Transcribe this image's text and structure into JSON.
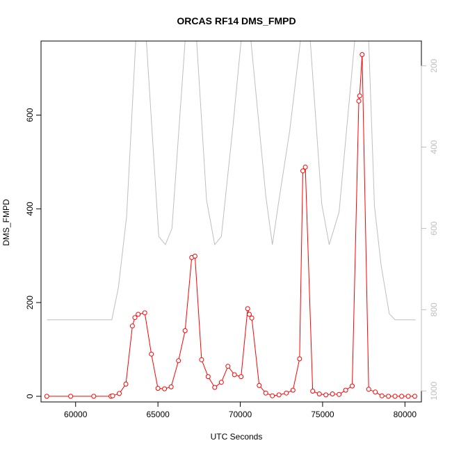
{
  "chart_data": {
    "type": "line",
    "title": "ORCAS RF14 DMS_FMPD",
    "xlabel": "UTC Seconds",
    "ylabel": "DMS_FMPD",
    "xlim": [
      57900,
      81000
    ],
    "ylim": [
      -12,
      758
    ],
    "x_ticks": [
      60000,
      65000,
      70000,
      75000,
      80000
    ],
    "y_ticks": [
      0,
      200,
      400,
      600
    ],
    "right_axis": {
      "label": "",
      "reversed": true,
      "ticks": [
        200,
        400,
        600,
        800,
        1000
      ],
      "color": "#bebebe",
      "ylim": [
        1027,
        139
      ]
    },
    "series": [
      {
        "color": "#ff0000",
        "axis": "left",
        "markers": "open-circle",
        "x": [
          58250,
          59700,
          61100,
          62150,
          62250,
          62650,
          63050,
          63450,
          63600,
          63800,
          64200,
          64600,
          65000,
          65400,
          65800,
          66250,
          66650,
          67050,
          67250,
          67650,
          68050,
          68450,
          68850,
          69250,
          69650,
          70050,
          70450,
          70550,
          70700,
          71150,
          71550,
          71950,
          72350,
          72800,
          73200,
          73600,
          73800,
          73950,
          74400,
          74800,
          75200,
          75600,
          76000,
          76400,
          76800,
          77200,
          77250,
          77400,
          77800,
          78200,
          78600,
          79000,
          79400,
          79800,
          80200,
          80600
        ],
        "y": [
          0,
          0,
          0,
          0,
          1,
          6,
          26,
          150,
          168,
          175,
          178,
          90,
          17,
          16,
          20,
          76,
          140,
          296,
          299,
          78,
          42,
          19,
          30,
          64,
          46,
          42,
          187,
          175,
          167,
          23,
          7,
          1,
          3,
          7,
          13,
          80,
          481,
          489,
          11,
          5,
          3,
          5,
          4,
          13,
          22,
          630,
          641,
          729,
          15,
          9,
          1,
          0,
          0,
          0,
          0,
          0
        ]
      },
      {
        "color": "#bebebe",
        "axis": "right",
        "markers": "none",
        "x": [
          58250,
          62200,
          62600,
          63100,
          63650,
          64300,
          65050,
          65450,
          65850,
          66650,
          67350,
          67950,
          68450,
          68850,
          69550,
          70050,
          70650,
          71550,
          71950,
          72350,
          73000,
          73650,
          74250,
          74950,
          75400,
          76000,
          76950,
          77800,
          78150,
          78550,
          79050,
          79400,
          80650
        ],
        "y": [
          825,
          825,
          745,
          570,
          139,
          139,
          620,
          640,
          600,
          139,
          139,
          530,
          640,
          620,
          350,
          139,
          139,
          520,
          640,
          530,
          360,
          139,
          139,
          540,
          640,
          560,
          139,
          139,
          545,
          690,
          810,
          825,
          825
        ]
      }
    ]
  }
}
